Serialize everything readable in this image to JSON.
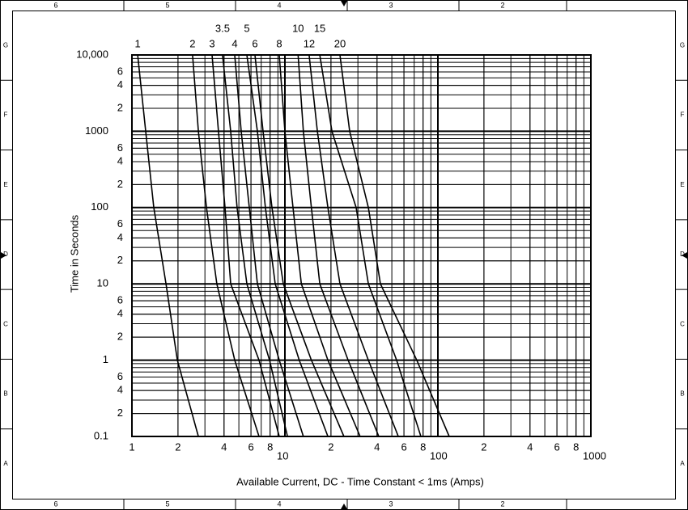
{
  "frame": {
    "columns": [
      "6",
      "5",
      "4",
      "3",
      "2"
    ],
    "rows": [
      "G",
      "F",
      "E",
      "D",
      "C",
      "B",
      "A"
    ]
  },
  "chart_data": {
    "type": "line",
    "xlog": true,
    "ylog": true,
    "grid": true,
    "color": "#000000",
    "xlabel": "Available Current, DC - Time Constant < 1ms (Amps)",
    "ylabel": "Time in Seconds",
    "xlim": [
      1,
      1000
    ],
    "ylim": [
      0.1,
      10000
    ],
    "xticks": [
      1,
      2,
      4,
      6,
      8,
      10,
      {
        "value": 20,
        "label": "2"
      },
      {
        "value": 40,
        "label": "4"
      },
      {
        "value": 60,
        "label": "6"
      },
      {
        "value": 80,
        "label": "8"
      },
      100,
      {
        "value": 200,
        "label": "2"
      },
      {
        "value": 400,
        "label": "4"
      },
      {
        "value": 600,
        "label": "6"
      },
      {
        "value": 800,
        "label": "8"
      },
      1000
    ],
    "yticks": [
      {
        "value": 10000,
        "label": "10,000"
      },
      {
        "value": 6000,
        "label": "6"
      },
      {
        "value": 4000,
        "label": "4"
      },
      {
        "value": 2000,
        "label": "2"
      },
      1000,
      {
        "value": 600,
        "label": "6"
      },
      {
        "value": 400,
        "label": "4"
      },
      {
        "value": 200,
        "label": "2"
      },
      100,
      {
        "value": 60,
        "label": "6"
      },
      {
        "value": 40,
        "label": "4"
      },
      {
        "value": 20,
        "label": "2"
      },
      10,
      6,
      4,
      2,
      1,
      {
        "value": 0.6,
        "label": "6"
      },
      {
        "value": 0.4,
        "label": "4"
      },
      {
        "value": 0.2,
        "label": "2"
      },
      0.1
    ],
    "series": [
      {
        "name": "1",
        "x": [
          1.09,
          1.23,
          1.39,
          1.67,
          1.98,
          2.72
        ],
        "values": [
          10000,
          1000,
          100,
          10,
          1,
          0.1
        ]
      },
      {
        "name": "2",
        "x": [
          2.49,
          2.72,
          3.07,
          3.59,
          4.7,
          6.77
        ],
        "values": [
          10000,
          1000,
          100,
          10,
          1,
          0.1
        ]
      },
      {
        "name": "3",
        "x": [
          3.34,
          3.68,
          4.06,
          4.42,
          6.77,
          9.18
        ],
        "values": [
          10000,
          1000,
          100,
          10,
          1,
          0.1
        ]
      },
      {
        "name": "3.5",
        "x": [
          3.91,
          4.42,
          4.87,
          5.64,
          7.93,
          10.4
        ],
        "values": [
          10000,
          1000,
          100,
          10,
          1,
          0.1
        ]
      },
      {
        "name": "4",
        "x": [
          4.7,
          5.18,
          5.85,
          6.61,
          9.18,
          13.2
        ],
        "values": [
          10000,
          1000,
          100,
          10,
          1,
          0.1
        ]
      },
      {
        "name": "5",
        "x": [
          5.64,
          6.61,
          7.46,
          8.64,
          12.4,
          19.1
        ],
        "values": [
          10000,
          1000,
          100,
          10,
          1,
          0.1
        ]
      },
      {
        "name": "6",
        "x": [
          6.37,
          7.2,
          8.23,
          9.76,
          14.9,
          24.3
        ],
        "values": [
          10000,
          1000,
          100,
          10,
          1,
          0.1
        ]
      },
      {
        "name": "8",
        "x": [
          9.18,
          10.0,
          11.3,
          12.8,
          19.1,
          31.0
        ],
        "values": [
          10000,
          1000,
          100,
          10,
          1,
          0.1
        ]
      },
      {
        "name": "10",
        "x": [
          12.2,
          13.2,
          14.9,
          16.9,
          25.9,
          41.1
        ],
        "values": [
          10000,
          1000,
          100,
          10,
          1,
          0.1
        ]
      },
      {
        "name": "12",
        "x": [
          14.4,
          16.3,
          19.1,
          22.9,
          35.1,
          55.1
        ],
        "values": [
          10000,
          1000,
          100,
          10,
          1,
          0.1
        ]
      },
      {
        "name": "15",
        "x": [
          16.9,
          20.3,
          29.2,
          35.1,
          53.7,
          77.4
        ],
        "values": [
          10000,
          1000,
          100,
          10,
          1,
          0.1
        ]
      },
      {
        "name": "20",
        "x": [
          22.9,
          26.5,
          35.1,
          42.1,
          72.8,
          118.6
        ],
        "values": [
          10000,
          1000,
          100,
          10,
          1,
          0.1
        ]
      }
    ]
  }
}
